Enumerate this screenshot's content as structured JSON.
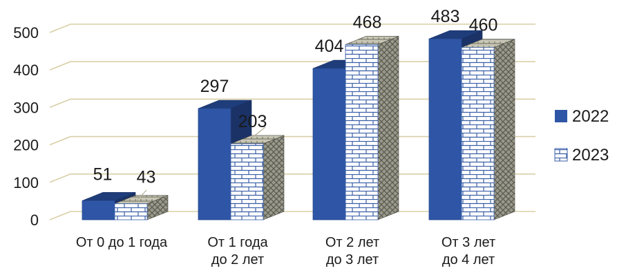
{
  "chart_data": {
    "type": "bar",
    "categories": [
      [
        "От 0 до 1 года"
      ],
      [
        "От 1 года",
        "до 2 лет"
      ],
      [
        "От 2 лет",
        "до 3 лет"
      ],
      [
        "От 3 лет",
        "до 4 лет"
      ]
    ],
    "series": [
      {
        "name": "2022",
        "values": [
          51,
          297,
          404,
          483
        ],
        "color": "#2f56a6"
      },
      {
        "name": "2023",
        "values": [
          43,
          203,
          468,
          460
        ],
        "color": "#ffffff",
        "pattern": "brick"
      }
    ],
    "ylim": [
      0,
      500
    ],
    "yticks": [
      0,
      100,
      200,
      300,
      400,
      500
    ],
    "grid": true,
    "legend": "right",
    "title": "",
    "xlabel": "",
    "ylabel": ""
  }
}
